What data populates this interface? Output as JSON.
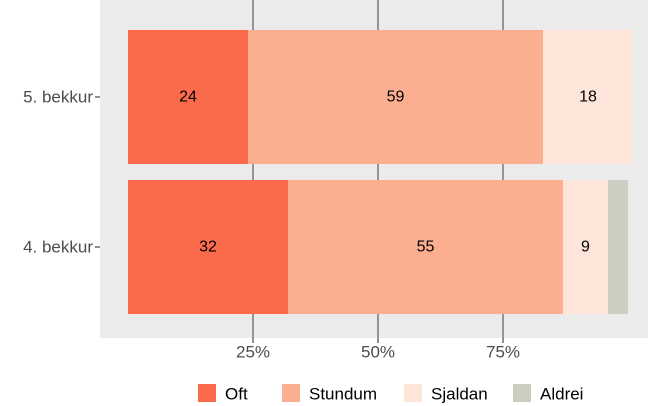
{
  "chart_data": {
    "type": "bar",
    "orientation": "horizontal",
    "stacked": true,
    "categories": [
      "5. bekkur",
      "4. bekkur"
    ],
    "series": [
      {
        "name": "Oft",
        "color": "#fb6a4a",
        "values": [
          24,
          32
        ],
        "labels": [
          "24",
          "32"
        ]
      },
      {
        "name": "Stundum",
        "color": "#fcae91",
        "values": [
          59,
          55
        ],
        "labels": [
          "59",
          "55"
        ]
      },
      {
        "name": "Sjaldan",
        "color": "#fee5d9",
        "values": [
          18,
          9
        ],
        "labels": [
          "18",
          "9"
        ]
      },
      {
        "name": "Aldrei",
        "color": "#cdcdc2",
        "values": [
          0,
          4
        ],
        "labels": [
          "",
          ""
        ]
      }
    ],
    "xlim": [
      0,
      101
    ],
    "xticks": [
      25,
      50,
      75
    ],
    "xtick_labels": [
      "25%",
      "50%",
      "75%"
    ],
    "grid": "vertical major",
    "legend_position": "bottom",
    "panel_color": "#ebebeb",
    "grid_color": "#4d4d4d"
  }
}
